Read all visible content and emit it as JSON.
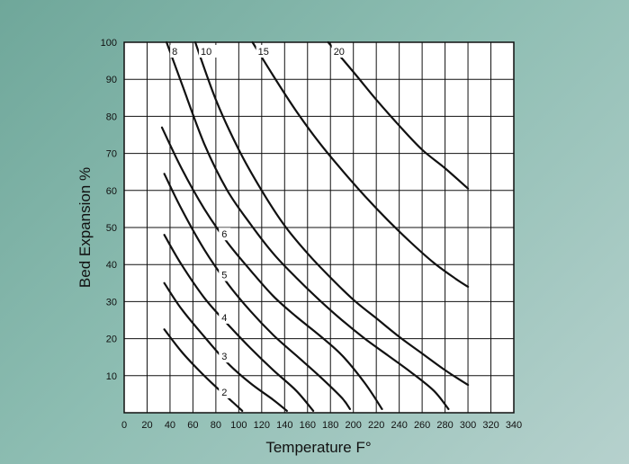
{
  "chart_data": {
    "type": "line",
    "title": "",
    "xlabel": "Temperature F°",
    "ylabel": "Bed Expansion %",
    "xlim": [
      0,
      340
    ],
    "ylim": [
      0,
      100
    ],
    "x_ticks": [
      0,
      20,
      40,
      60,
      80,
      100,
      120,
      140,
      160,
      180,
      200,
      220,
      240,
      260,
      280,
      300,
      320,
      340
    ],
    "y_ticks": [
      10,
      20,
      30,
      40,
      50,
      60,
      70,
      80,
      90,
      100
    ],
    "grid": true,
    "legend": "none",
    "colors": {
      "background": "#8dbdb2",
      "plot_bg": "#ffffff",
      "line": "#111111",
      "grid": "#111111"
    },
    "series": [
      {
        "name": "2",
        "points": [
          [
            35,
            22.5
          ],
          [
            50,
            16.5
          ],
          [
            65,
            11.5
          ],
          [
            80,
            7
          ],
          [
            95,
            2.8
          ],
          [
            103,
            0.5
          ]
        ]
      },
      {
        "name": "3",
        "points": [
          [
            35,
            35
          ],
          [
            50,
            28
          ],
          [
            70,
            20.5
          ],
          [
            90,
            13.5
          ],
          [
            110,
            8
          ],
          [
            130,
            3.5
          ],
          [
            142,
            0.5
          ]
        ]
      },
      {
        "name": "4",
        "points": [
          [
            35,
            48
          ],
          [
            50,
            40
          ],
          [
            70,
            31
          ],
          [
            90,
            24
          ],
          [
            110,
            17.5
          ],
          [
            130,
            11.5
          ],
          [
            150,
            6
          ],
          [
            165,
            0.5
          ]
        ]
      },
      {
        "name": "5",
        "points": [
          [
            35,
            64.5
          ],
          [
            50,
            55
          ],
          [
            70,
            44
          ],
          [
            90,
            35
          ],
          [
            110,
            27.5
          ],
          [
            130,
            21
          ],
          [
            150,
            15.5
          ],
          [
            170,
            10
          ],
          [
            190,
            4
          ],
          [
            197,
            1
          ]
        ]
      },
      {
        "name": "6",
        "points": [
          [
            33,
            77
          ],
          [
            50,
            66
          ],
          [
            70,
            55
          ],
          [
            90,
            46
          ],
          [
            110,
            38.5
          ],
          [
            130,
            31.5
          ],
          [
            150,
            26
          ],
          [
            170,
            21
          ],
          [
            190,
            15.5
          ],
          [
            210,
            8
          ],
          [
            225,
            1
          ]
        ]
      },
      {
        "name": "8",
        "points": [
          [
            37,
            100
          ],
          [
            50,
            89
          ],
          [
            70,
            72.5
          ],
          [
            90,
            60
          ],
          [
            110,
            51
          ],
          [
            130,
            43
          ],
          [
            150,
            36.5
          ],
          [
            170,
            30.5
          ],
          [
            190,
            25
          ],
          [
            210,
            20
          ],
          [
            230,
            15.5
          ],
          [
            250,
            11
          ],
          [
            270,
            6
          ],
          [
            283,
            1
          ]
        ]
      },
      {
        "name": "10",
        "points": [
          [
            62,
            100
          ],
          [
            80,
            84.5
          ],
          [
            100,
            71
          ],
          [
            120,
            60
          ],
          [
            140,
            50.5
          ],
          [
            160,
            43
          ],
          [
            180,
            36.5
          ],
          [
            200,
            30.5
          ],
          [
            220,
            25.5
          ],
          [
            240,
            20.5
          ],
          [
            260,
            16
          ],
          [
            280,
            11.5
          ],
          [
            300,
            7.5
          ]
        ]
      },
      {
        "name": "15",
        "points": [
          [
            112,
            100
          ],
          [
            130,
            91
          ],
          [
            150,
            81.5
          ],
          [
            170,
            73
          ],
          [
            190,
            65.5
          ],
          [
            210,
            58.5
          ],
          [
            230,
            52
          ],
          [
            250,
            46
          ],
          [
            270,
            40.5
          ],
          [
            290,
            36
          ],
          [
            300,
            34
          ]
        ]
      },
      {
        "name": "20",
        "points": [
          [
            178,
            100
          ],
          [
            200,
            92
          ],
          [
            220,
            84.5
          ],
          [
            240,
            77.5
          ],
          [
            260,
            71
          ],
          [
            280,
            66
          ],
          [
            300,
            60.5
          ]
        ]
      }
    ]
  }
}
